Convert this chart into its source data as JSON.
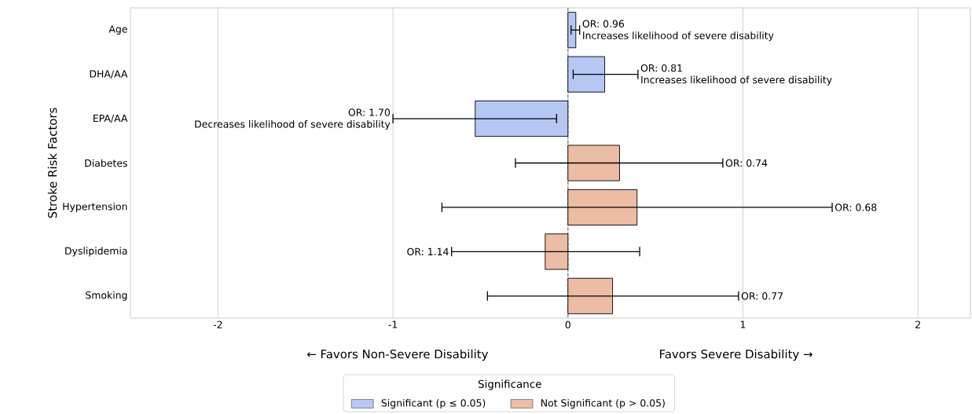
{
  "chart_data": {
    "type": "bar",
    "orientation": "horizontal",
    "ylabel": "Stroke Risk Factors",
    "legend_title": "Significance",
    "categories": [
      "Age",
      "DHA/AA",
      "EPA/AA",
      "Diabetes",
      "Hypertension",
      "Dyslipidemia",
      "Smoking"
    ],
    "series": [
      {
        "name": "Significant (p ≤ 0.05)",
        "color": "#b4c8f3",
        "values": [
          0.045,
          0.21,
          -0.53,
          null,
          null,
          null,
          null
        ],
        "errors": [
          [
            0.018,
            0.067
          ],
          [
            0.03,
            0.4
          ],
          [
            -1.0,
            -0.065
          ],
          null,
          null,
          null,
          null
        ]
      },
      {
        "name": "Not Significant (p > 0.05)",
        "color": "#ecbca4",
        "values": [
          null,
          null,
          null,
          0.295,
          0.395,
          -0.13,
          0.255
        ],
        "errors": [
          null,
          null,
          null,
          [
            -0.3,
            0.885
          ],
          [
            -0.72,
            1.51
          ],
          [
            -0.665,
            0.41
          ],
          [
            -0.46,
            0.975
          ]
        ]
      }
    ],
    "xlim": [
      -2.5,
      2.3
    ],
    "xticks": [
      -2,
      -1,
      0,
      1,
      2
    ],
    "grid": "x",
    "legend": "bottom",
    "ref_lines": [
      {
        "axis": "x",
        "value": 0,
        "color": "#808080",
        "line_style": "dashed"
      }
    ],
    "annotations": [
      "← Favors Non-Severe Disability",
      "Favors Severe Disability →",
      {
        "text": "OR: 0.96",
        "x": 0.067,
        "y": "Age"
      },
      {
        "text": "Increases likelihood of severe disability",
        "x": 0.067,
        "y": "Age"
      },
      {
        "text": "OR: 0.81",
        "x": 0.4,
        "y": "DHA/AA"
      },
      {
        "text": "Increases likelihood of severe disability",
        "x": 0.4,
        "y": "DHA/AA"
      },
      {
        "text": "OR: 1.70",
        "x": -1.0,
        "y": "EPA/AA"
      },
      {
        "text": "Decreases likelihood of severe disability",
        "x": -1.0,
        "y": "EPA/AA"
      },
      {
        "text": "OR: 0.74",
        "x": 0.885,
        "y": "Diabetes"
      },
      {
        "text": "OR: 0.68",
        "x": 1.51,
        "y": "Hypertension"
      },
      {
        "text": "OR: 1.14",
        "x": -0.665,
        "y": "Dyslipidemia"
      },
      {
        "text": "OR: 0.77",
        "x": 0.975,
        "y": "Smoking"
      }
    ]
  }
}
